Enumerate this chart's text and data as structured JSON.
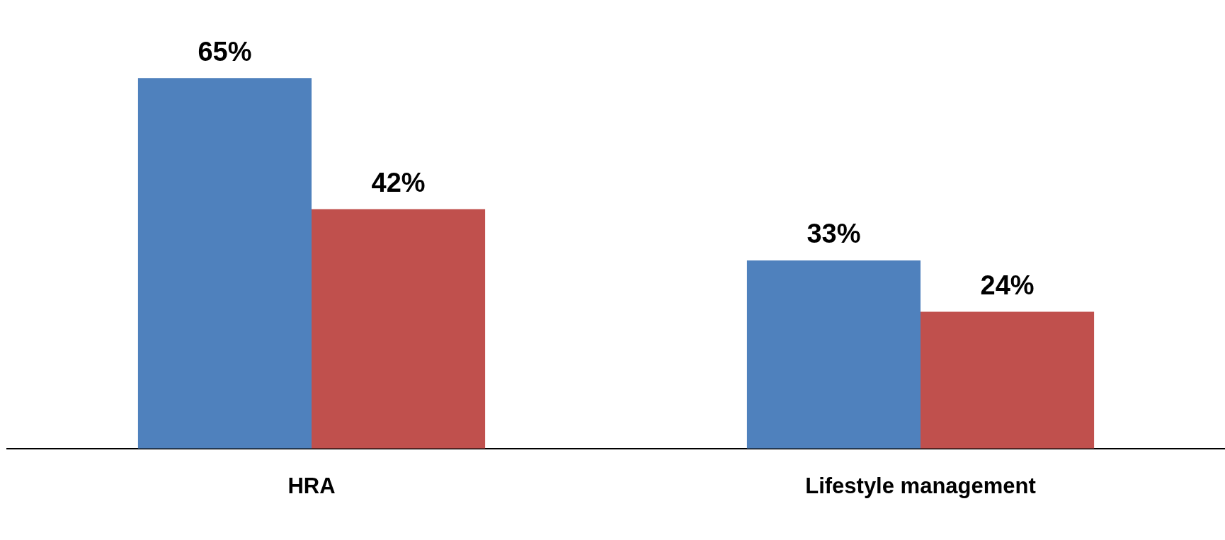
{
  "chart_data": {
    "type": "bar",
    "categories": [
      "HRA",
      "Lifestyle management"
    ],
    "series": [
      {
        "color": "#4f81bd",
        "values": [
          65,
          33
        ],
        "value_labels": [
          "65%",
          "33%"
        ]
      },
      {
        "color": "#c0504d",
        "values": [
          42,
          24
        ],
        "value_labels": [
          "42%",
          "24%"
        ]
      }
    ],
    "grid": false,
    "legend": false
  }
}
